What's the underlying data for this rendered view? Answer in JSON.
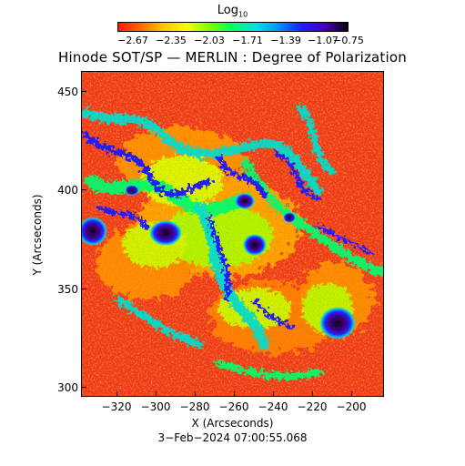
{
  "colorbar": {
    "title_main": "Log",
    "title_sub": "10",
    "ticks": [
      "−2.67",
      "−2.35",
      "−2.03",
      "−1.71",
      "−1.39",
      "−1.07",
      "−0.75"
    ],
    "colors": [
      "#ff1a00",
      "#ff6a00",
      "#ffc800",
      "#f0ff00",
      "#7cff00",
      "#00ff64",
      "#00e0e0",
      "#0090ff",
      "#1d1dff",
      "#4a00b8",
      "#0a0010"
    ]
  },
  "plot": {
    "title": "Hinode SOT/SP — MERLIN : Degree of Polarization",
    "xlabel": "X (Arcseconds)",
    "ylabel": "Y (Arcseconds)",
    "xticks": [
      "−320",
      "−300",
      "−280",
      "−260",
      "−240",
      "−220",
      "−200"
    ],
    "yticks": [
      "300",
      "350",
      "400",
      "450"
    ],
    "timestamp": "3−Feb−2024 07:00:55.068"
  }
}
